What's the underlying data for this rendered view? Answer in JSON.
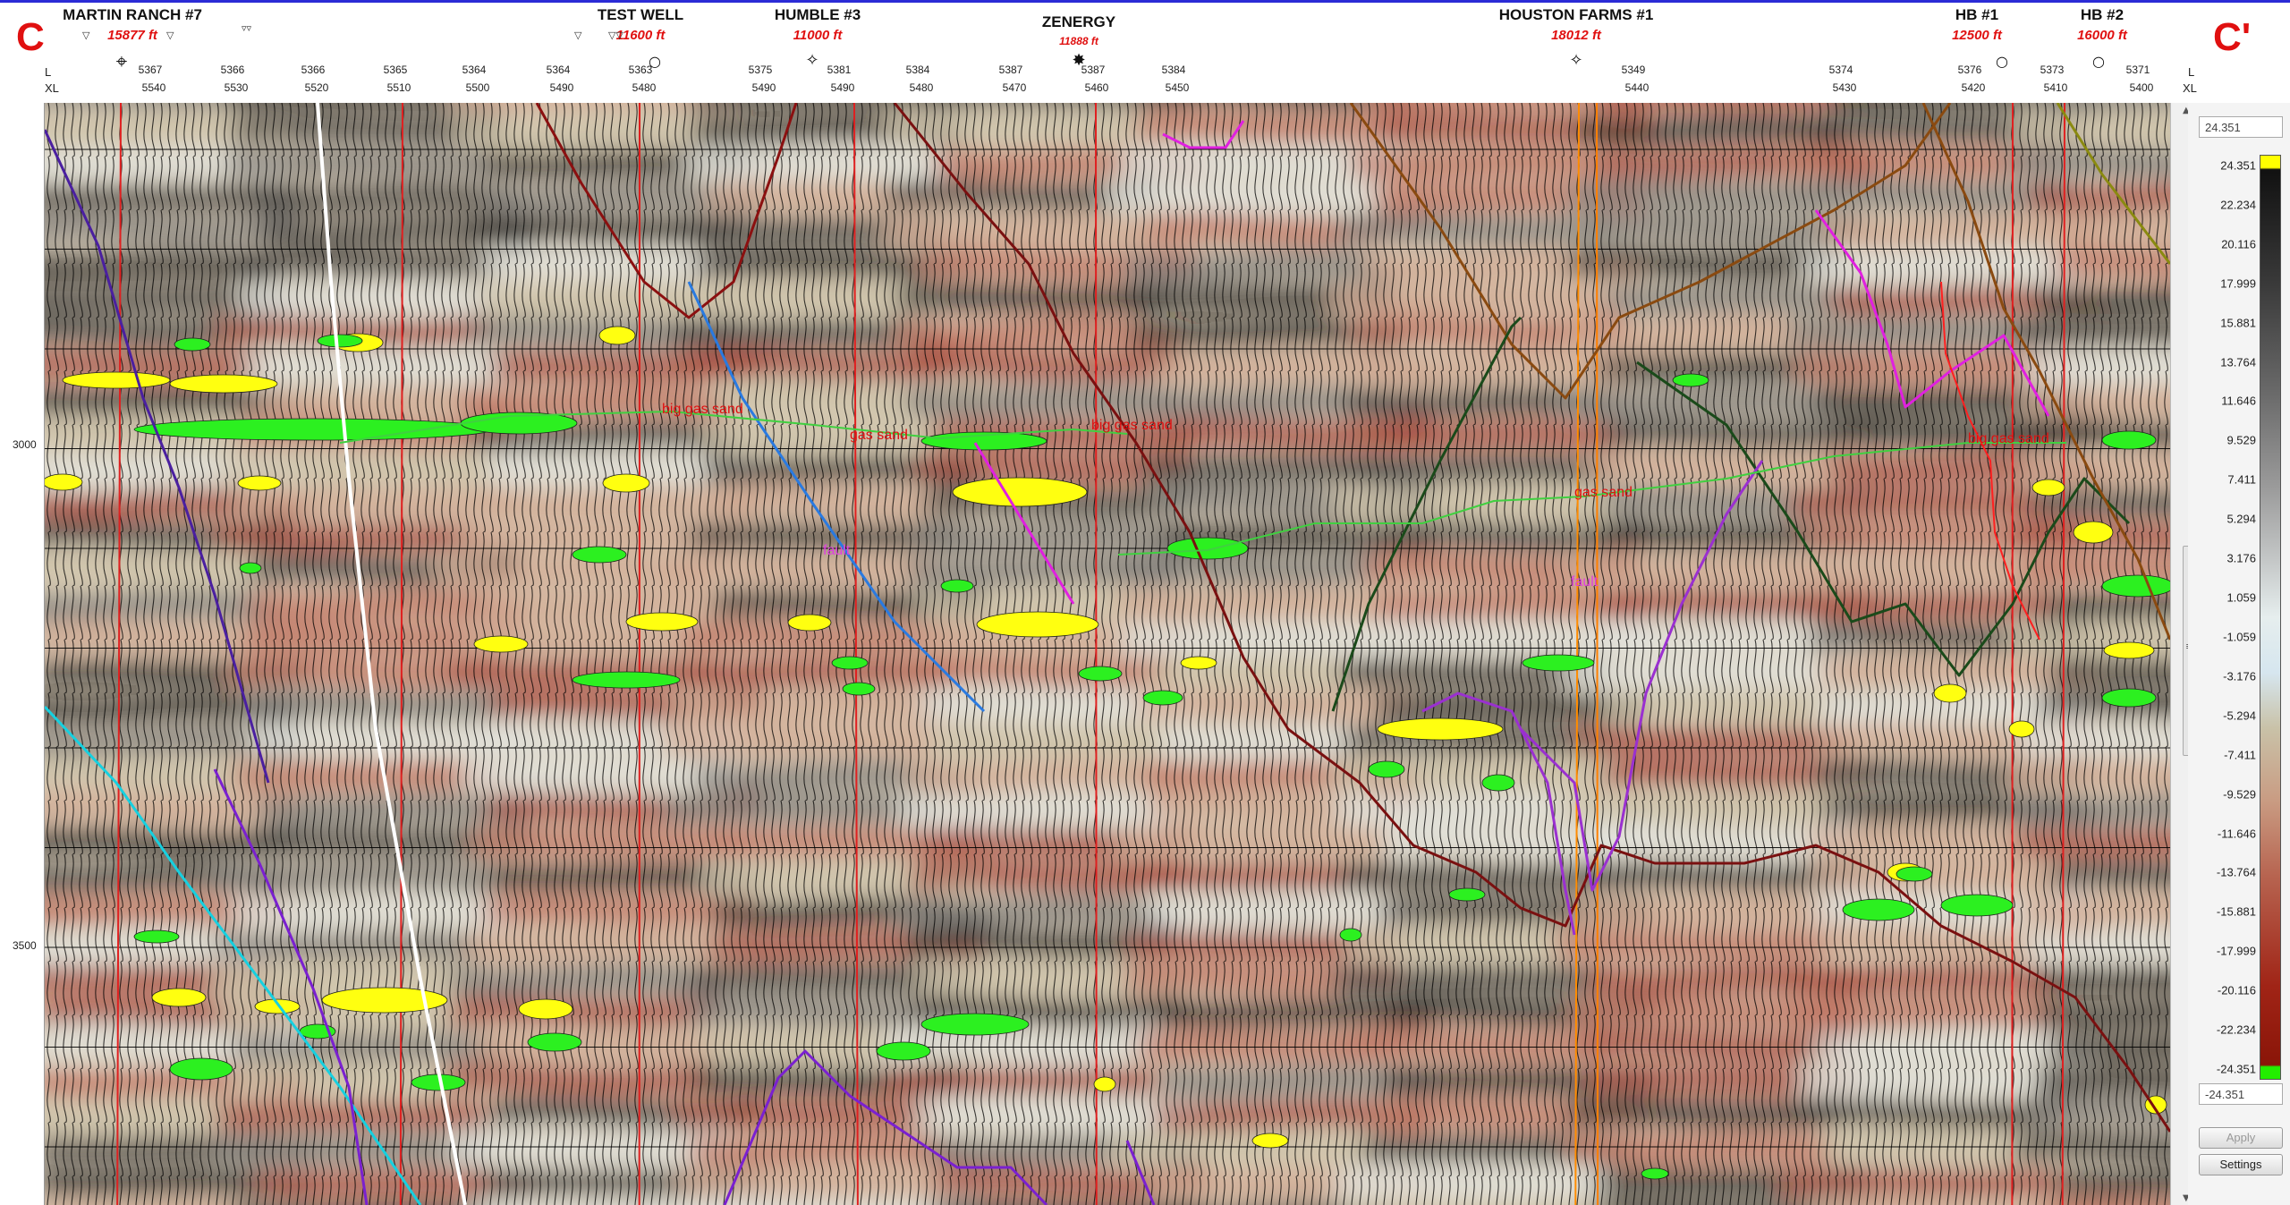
{
  "section": {
    "left_label": "C",
    "right_label": "C'"
  },
  "wells": [
    {
      "name": "MARTIN RANCH #7",
      "depth": "15877 ft"
    },
    {
      "name": "TEST WELL",
      "depth": "11600 ft"
    },
    {
      "name": "HUMBLE #3",
      "depth": "11000 ft"
    },
    {
      "name": "ZENERGY",
      "depth": "11888 ft"
    },
    {
      "name": "HOUSTON FARMS #1",
      "depth": "18012 ft"
    },
    {
      "name": "HB #1",
      "depth": "12500 ft"
    },
    {
      "name": "HB #2",
      "depth": "16000 ft"
    }
  ],
  "axis_tags": {
    "line": "L",
    "xline": "XL"
  },
  "trace_ticks": [
    "5367",
    "5366",
    "5366",
    "5365",
    "5364",
    "5364",
    "5363",
    "5375",
    "5381",
    "5384",
    "5387",
    "5387",
    "5384",
    "5349",
    "5374",
    "5376",
    "5373",
    "5371"
  ],
  "xline_ticks": [
    "5540",
    "5530",
    "5520",
    "5510",
    "5500",
    "5490",
    "5480",
    "5490",
    "5490",
    "5480",
    "5470",
    "5460",
    "5450",
    "5440",
    "5430",
    "5420",
    "5410",
    "5400"
  ],
  "depth_ticks": [
    "3000",
    "3500"
  ],
  "horizon_labels": {
    "big_gas_sand": "big gas sand",
    "gas_sand": "gas sand",
    "fault_a": "fault",
    "fault_b": "fault"
  },
  "colorbar": {
    "max_box": "24.351",
    "min_box": "-24.351",
    "ticks": [
      "24.351",
      "22.234",
      "20.116",
      "17.999",
      "15.881",
      "13.764",
      "11.646",
      "9.529",
      "7.411",
      "5.294",
      "3.176",
      "1.059",
      "-1.059",
      "-3.176",
      "-5.294",
      "-7.411",
      "-9.529",
      "-11.646",
      "-13.764",
      "-15.881",
      "-17.999",
      "-20.116",
      "-22.234",
      "-24.351"
    ],
    "colors": {
      "top": "#ffff00",
      "bottom": "#22ee00",
      "neg": "#a02416",
      "pos": "#111111"
    }
  },
  "buttons": {
    "apply": "Apply",
    "settings": "Settings"
  }
}
